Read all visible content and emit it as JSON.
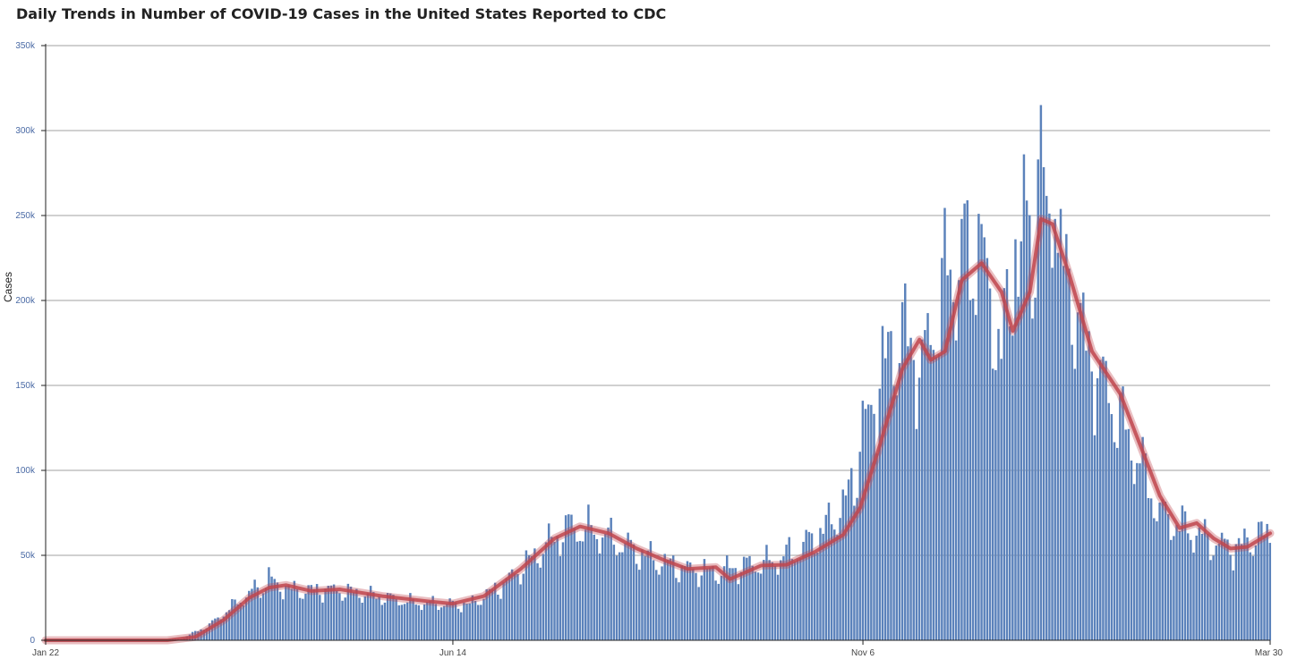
{
  "chart_data": {
    "type": "bar",
    "title": "Daily Trends in Number of COVID-19 Cases in the United States Reported to CDC",
    "ylabel": "Cases",
    "xlabel": "",
    "ylim": [
      0,
      350000
    ],
    "y_ticks": [
      0,
      50000,
      100000,
      150000,
      200000,
      250000,
      300000,
      350000
    ],
    "y_tick_labels": [
      "0",
      "50k",
      "100k",
      "150k",
      "200k",
      "250k",
      "300k",
      "350k"
    ],
    "x_tick_labels": [
      "Jan 22",
      "Jun 14",
      "Nov 6",
      "Mar 30"
    ],
    "x_tick_dates": [
      "2020-01-22",
      "2020-06-14",
      "2020-11-06",
      "2021-03-30"
    ],
    "grid": true,
    "series": [
      {
        "type": "bar",
        "color": "#5b82bb",
        "anchors": [
          [
            "2020-01-22",
            0
          ],
          [
            "2020-03-01",
            0
          ],
          [
            "2020-03-10",
            900
          ],
          [
            "2020-03-20",
            9000
          ],
          [
            "2020-03-28",
            20000
          ],
          [
            "2020-04-05",
            30000
          ],
          [
            "2020-04-12",
            33000
          ],
          [
            "2020-04-20",
            29000
          ],
          [
            "2020-05-01",
            30000
          ],
          [
            "2020-05-15",
            27000
          ],
          [
            "2020-06-01",
            22000
          ],
          [
            "2020-06-20",
            21000
          ],
          [
            "2020-07-01",
            32000
          ],
          [
            "2020-07-10",
            45000
          ],
          [
            "2020-07-20",
            60000
          ],
          [
            "2020-07-25",
            67000
          ],
          [
            "2020-08-05",
            63000
          ],
          [
            "2020-08-15",
            55000
          ],
          [
            "2020-08-25",
            47000
          ],
          [
            "2020-09-05",
            42000
          ],
          [
            "2020-09-15",
            40000
          ],
          [
            "2020-09-25",
            44000
          ],
          [
            "2020-10-05",
            46000
          ],
          [
            "2020-10-15",
            54000
          ],
          [
            "2020-10-25",
            68000
          ],
          [
            "2020-11-01",
            85000
          ],
          [
            "2020-11-06",
            115000
          ],
          [
            "2020-11-13",
            160000
          ],
          [
            "2020-11-20",
            180000
          ],
          [
            "2020-11-27",
            160000
          ],
          [
            "2020-12-05",
            210000
          ],
          [
            "2020-12-12",
            222000
          ],
          [
            "2020-12-18",
            215000
          ],
          [
            "2020-12-25",
            175000
          ],
          [
            "2021-01-01",
            215000
          ],
          [
            "2021-01-08",
            250000
          ],
          [
            "2021-01-15",
            225000
          ],
          [
            "2021-01-22",
            180000
          ],
          [
            "2021-01-29",
            155000
          ],
          [
            "2021-02-05",
            130000
          ],
          [
            "2021-02-12",
            105000
          ],
          [
            "2021-02-19",
            75000
          ],
          [
            "2021-02-26",
            68000
          ],
          [
            "2021-03-05",
            62000
          ],
          [
            "2021-03-12",
            56000
          ],
          [
            "2021-03-19",
            55000
          ],
          [
            "2021-03-26",
            62000
          ],
          [
            "2021-03-30",
            62000
          ]
        ],
        "spikes": [
          [
            "2020-04-10",
            43000
          ],
          [
            "2020-10-29",
            72000
          ],
          [
            "2020-11-06",
            141000
          ],
          [
            "2020-11-20",
            199000
          ],
          [
            "2020-12-04",
            225000
          ],
          [
            "2020-12-11",
            248000
          ],
          [
            "2020-12-17",
            251000
          ],
          [
            "2020-12-18",
            245000
          ],
          [
            "2020-12-30",
            236000
          ],
          [
            "2021-01-02",
            286000
          ],
          [
            "2021-01-08",
            315000
          ],
          [
            "2021-01-07",
            283000
          ],
          [
            "2021-01-13",
            248000
          ],
          [
            "2021-01-21",
            193000
          ],
          [
            "2021-01-29",
            165000
          ]
        ]
      },
      {
        "type": "line",
        "color": "#c0464e",
        "points": [
          [
            "2020-01-22",
            0
          ],
          [
            "2020-03-05",
            0
          ],
          [
            "2020-03-15",
            2000
          ],
          [
            "2020-03-25",
            12000
          ],
          [
            "2020-04-03",
            25000
          ],
          [
            "2020-04-10",
            31000
          ],
          [
            "2020-04-16",
            32500
          ],
          [
            "2020-04-25",
            29000
          ],
          [
            "2020-05-05",
            30000
          ],
          [
            "2020-05-20",
            26000
          ],
          [
            "2020-06-05",
            23000
          ],
          [
            "2020-06-14",
            21500
          ],
          [
            "2020-06-25",
            26000
          ],
          [
            "2020-07-08",
            42000
          ],
          [
            "2020-07-20",
            60000
          ],
          [
            "2020-07-29",
            67000
          ],
          [
            "2020-08-08",
            63000
          ],
          [
            "2020-08-18",
            54000
          ],
          [
            "2020-08-28",
            47000
          ],
          [
            "2020-09-05",
            42000
          ],
          [
            "2020-09-15",
            43000
          ],
          [
            "2020-09-20",
            36000
          ],
          [
            "2020-10-01",
            44000
          ],
          [
            "2020-10-10",
            44500
          ],
          [
            "2020-10-20",
            52000
          ],
          [
            "2020-10-30",
            62000
          ],
          [
            "2020-11-05",
            78000
          ],
          [
            "2020-11-12",
            115000
          ],
          [
            "2020-11-20",
            160000
          ],
          [
            "2020-11-26",
            177000
          ],
          [
            "2020-11-30",
            165000
          ],
          [
            "2020-12-05",
            170000
          ],
          [
            "2020-12-11",
            212000
          ],
          [
            "2020-12-18",
            222000
          ],
          [
            "2020-12-25",
            205000
          ],
          [
            "2020-12-29",
            182000
          ],
          [
            "2021-01-04",
            205000
          ],
          [
            "2021-01-08",
            248000
          ],
          [
            "2021-01-12",
            245000
          ],
          [
            "2021-01-18",
            215000
          ],
          [
            "2021-01-26",
            170000
          ],
          [
            "2021-02-05",
            145000
          ],
          [
            "2021-02-12",
            115000
          ],
          [
            "2021-02-19",
            85000
          ],
          [
            "2021-02-26",
            66000
          ],
          [
            "2021-03-04",
            69000
          ],
          [
            "2021-03-10",
            60000
          ],
          [
            "2021-03-16",
            54000
          ],
          [
            "2021-03-22",
            55000
          ],
          [
            "2021-03-30",
            63000
          ]
        ]
      }
    ]
  }
}
